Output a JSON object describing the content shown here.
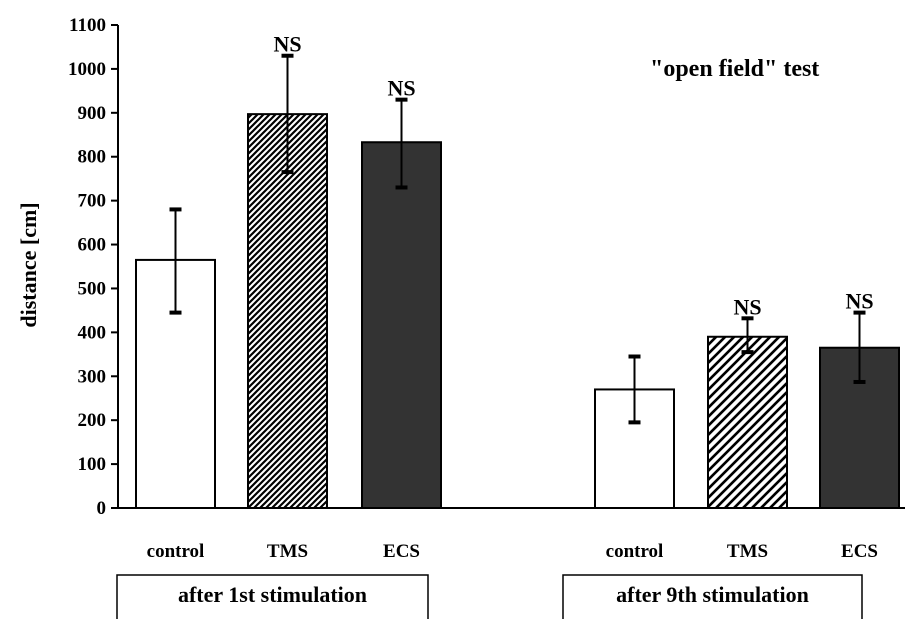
{
  "chart_data": {
    "type": "bar",
    "title": "\"open field\"   test",
    "ylabel": "distance  [cm]",
    "ylim": [
      0,
      1100
    ],
    "yticks": [
      0,
      100,
      200,
      300,
      400,
      500,
      600,
      700,
      800,
      900,
      1000,
      1100
    ],
    "grid": false,
    "groups": [
      {
        "label": "after 1st stimulation",
        "bars": [
          {
            "category": "control",
            "value": 565,
            "err_low": 445,
            "err_high": 680,
            "annotation": "",
            "fill": "white"
          },
          {
            "category": "TMS",
            "value": 897,
            "err_low": 765,
            "err_high": 1030,
            "annotation": "NS",
            "fill": "dense-hatch"
          },
          {
            "category": "ECS",
            "value": 833,
            "err_low": 730,
            "err_high": 930,
            "annotation": "NS",
            "fill": "dark"
          }
        ]
      },
      {
        "label": "after 9th stimulation",
        "bars": [
          {
            "category": "control",
            "value": 270,
            "err_low": 195,
            "err_high": 345,
            "annotation": "",
            "fill": "white"
          },
          {
            "category": "TMS",
            "value": 390,
            "err_low": 355,
            "err_high": 432,
            "annotation": "NS",
            "fill": "diag-hatch"
          },
          {
            "category": "ECS",
            "value": 365,
            "err_low": 287,
            "err_high": 445,
            "annotation": "NS",
            "fill": "dark"
          }
        ]
      }
    ],
    "colors": {
      "bar_dark": "#333333",
      "bar_white": "#ffffff",
      "axis": "#000000"
    }
  }
}
